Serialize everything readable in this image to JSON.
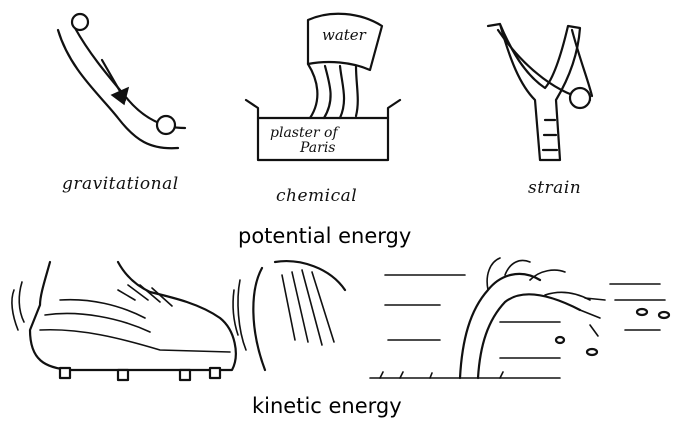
{
  "potential": {
    "heading": "potential energy",
    "gravitational": {
      "label": "gravitational"
    },
    "chemical": {
      "label": "chemical",
      "container_text": "water",
      "tray_text_line1": "plaster of",
      "tray_text_line2": "Paris"
    },
    "strain": {
      "label": "strain"
    }
  },
  "kinetic": {
    "heading": "kinetic energy"
  },
  "colors": {
    "ink": "#111111",
    "background": "#ffffff"
  }
}
